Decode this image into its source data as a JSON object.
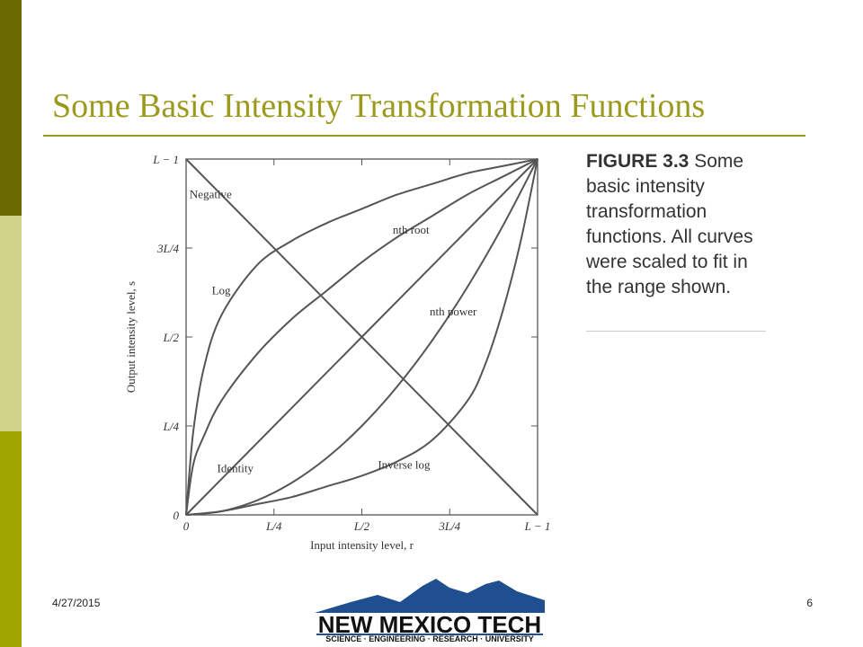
{
  "slide": {
    "title": "Some Basic Intensity Transformation Functions",
    "date": "4/27/2015",
    "page_number": "6",
    "colors": {
      "title": "#9c9a1e",
      "band_top": "#6b6a00",
      "band_mid": "#cfd48a",
      "band_bottom": "#9ea500",
      "rule": "#9c9a1e",
      "curve": "#555555",
      "logo_blue": "#1f4f8f"
    }
  },
  "caption": {
    "figure_number": "FIGURE 3.3",
    "text": "Some basic intensity transformation functions. All curves were scaled to fit in the range shown."
  },
  "logo": {
    "name": "NEW MEXICO TECH",
    "tagline": "SCIENCE · ENGINEERING · RESEARCH · UNIVERSITY"
  },
  "chart_data": {
    "type": "line",
    "title": "",
    "xlabel": "Input intensity level, r",
    "ylabel": "Output intensity level, s",
    "xlim": [
      0,
      1
    ],
    "ylim": [
      0,
      1
    ],
    "x_ticks": [
      {
        "value": 0,
        "label": "0"
      },
      {
        "value": 0.25,
        "label": "L/4"
      },
      {
        "value": 0.5,
        "label": "L/2"
      },
      {
        "value": 0.75,
        "label": "3L/4"
      },
      {
        "value": 1,
        "label": "L − 1"
      }
    ],
    "y_ticks": [
      {
        "value": 0,
        "label": "0"
      },
      {
        "value": 0.25,
        "label": "L/4"
      },
      {
        "value": 0.5,
        "label": "L/2"
      },
      {
        "value": 0.75,
        "label": "3L/4"
      },
      {
        "value": 1,
        "label": "L − 1"
      }
    ],
    "grid": false,
    "series": [
      {
        "name": "Negative",
        "x": [
          0,
          1
        ],
        "y": [
          1,
          0
        ],
        "label_at": [
          0.07,
          0.89
        ]
      },
      {
        "name": "Log",
        "x": [
          0,
          0.02,
          0.05,
          0.1,
          0.2,
          0.3,
          0.4,
          0.5,
          0.6,
          0.7,
          0.8,
          0.9,
          1.0
        ],
        "y": [
          0,
          0.23,
          0.41,
          0.56,
          0.7,
          0.77,
          0.82,
          0.86,
          0.9,
          0.93,
          0.96,
          0.98,
          1.0
        ],
        "label_at": [
          0.1,
          0.62
        ]
      },
      {
        "name": "nth root",
        "x": [
          0,
          0.02,
          0.05,
          0.1,
          0.2,
          0.3,
          0.4,
          0.5,
          0.6,
          0.7,
          0.8,
          0.9,
          1.0
        ],
        "y": [
          0,
          0.14,
          0.22,
          0.32,
          0.45,
          0.55,
          0.63,
          0.71,
          0.78,
          0.84,
          0.9,
          0.95,
          1.0
        ],
        "label_at": [
          0.64,
          0.79
        ]
      },
      {
        "name": "Identity",
        "x": [
          0,
          1
        ],
        "y": [
          0,
          1
        ],
        "label_at": [
          0.14,
          0.12
        ]
      },
      {
        "name": "nth power",
        "x": [
          0,
          0.1,
          0.2,
          0.3,
          0.4,
          0.5,
          0.6,
          0.7,
          0.8,
          0.9,
          1.0
        ],
        "y": [
          0,
          0.01,
          0.04,
          0.09,
          0.16,
          0.25,
          0.36,
          0.49,
          0.64,
          0.81,
          1.0
        ],
        "label_at": [
          0.76,
          0.56
        ]
      },
      {
        "name": "Inverse log",
        "x": [
          0,
          0.1,
          0.2,
          0.3,
          0.4,
          0.5,
          0.6,
          0.7,
          0.8,
          0.85,
          0.9,
          0.95,
          1.0
        ],
        "y": [
          0,
          0.01,
          0.03,
          0.05,
          0.08,
          0.11,
          0.15,
          0.21,
          0.32,
          0.42,
          0.57,
          0.76,
          1.0
        ],
        "label_at": [
          0.62,
          0.13
        ]
      }
    ]
  }
}
